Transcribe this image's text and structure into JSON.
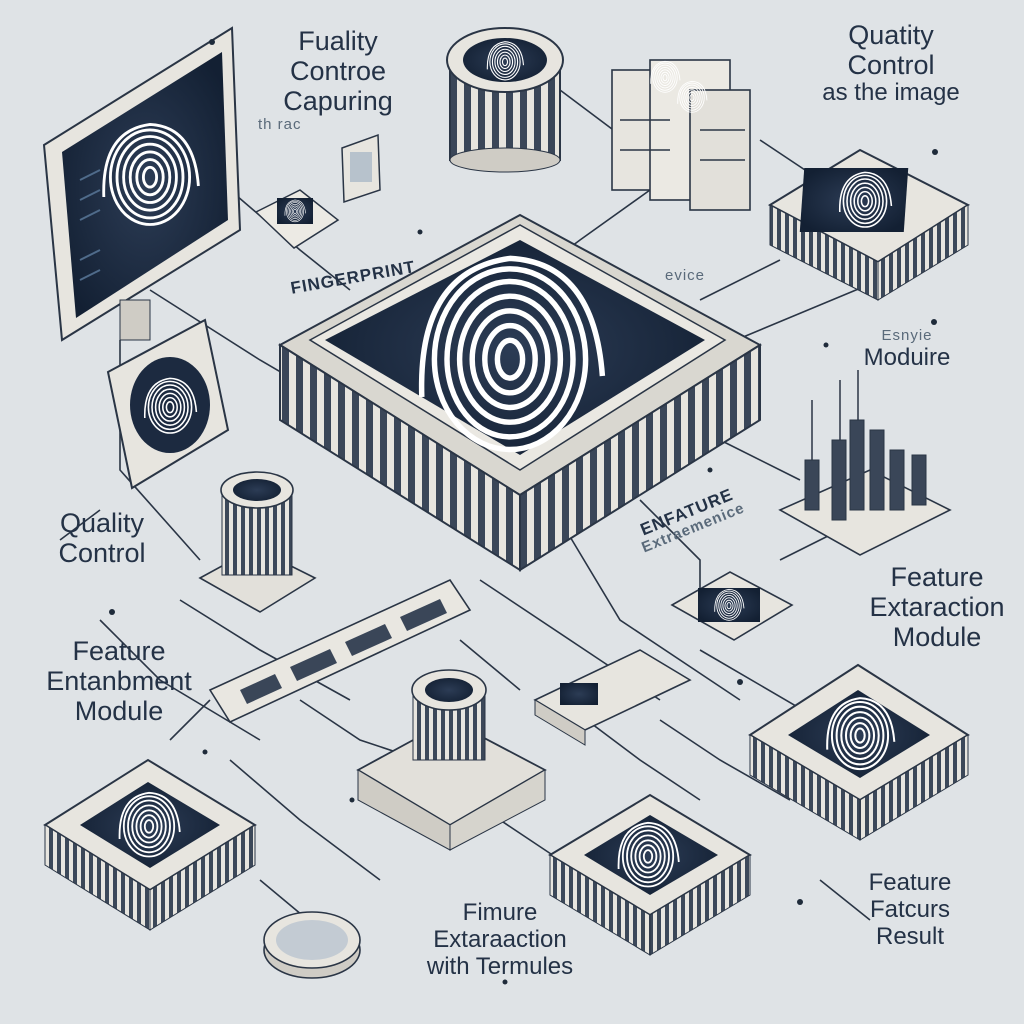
{
  "labels": {
    "top_left": [
      "Fuality",
      "Controe",
      "Capuring",
      "th rac"
    ],
    "top_right": [
      "Quatity",
      "Control",
      "as the image"
    ],
    "fingerprint": "FINGERPRINT",
    "device": [
      "evice"
    ],
    "module_right": [
      "Esnyie",
      "Moduire"
    ],
    "quality_left": [
      "Quality",
      "Control"
    ],
    "enfature": [
      "ENFATURE",
      "Extraemenice"
    ],
    "feature_extraction": [
      "Feature",
      "Extaraction",
      "Module"
    ],
    "feature_enhancement": [
      "Feature",
      "Entanbment",
      "Module"
    ],
    "fimure": [
      "Fimure",
      "Extaraaction",
      "with Termules"
    ],
    "feature_result": [
      "Feature",
      "Fatcurs",
      "Result"
    ]
  },
  "colors": {
    "background": "#dfe3e6",
    "chip_body": "#e8e6e0",
    "screen": "#1c2a40",
    "line": "#2a3545",
    "text": "#243246"
  }
}
